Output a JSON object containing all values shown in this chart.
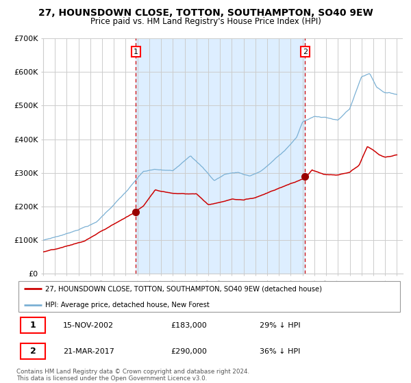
{
  "title": "27, HOUNSDOWN CLOSE, TOTTON, SOUTHAMPTON, SO40 9EW",
  "subtitle": "Price paid vs. HM Land Registry's House Price Index (HPI)",
  "legend_property": "27, HOUNSDOWN CLOSE, TOTTON, SOUTHAMPTON, SO40 9EW (detached house)",
  "legend_hpi": "HPI: Average price, detached house, New Forest",
  "sale1_date": "15-NOV-2002",
  "sale1_price": "£183,000",
  "sale1_hpi": "29% ↓ HPI",
  "sale2_date": "21-MAR-2017",
  "sale2_price": "£290,000",
  "sale2_hpi": "36% ↓ HPI",
  "footnote": "Contains HM Land Registry data © Crown copyright and database right 2024.\nThis data is licensed under the Open Government Licence v3.0.",
  "sale1_year": 2002.87,
  "sale2_year": 2017.22,
  "property_color": "#cc0000",
  "hpi_color": "#7ab0d4",
  "bg_fill_color": "#ddeeff",
  "vline_color": "#cc0000",
  "marker_color": "#990000",
  "grid_color": "#cccccc",
  "ylim": [
    0,
    700000
  ],
  "yticks": [
    0,
    100000,
    200000,
    300000,
    400000,
    500000,
    600000,
    700000
  ],
  "ytick_labels": [
    "£0",
    "£100K",
    "£200K",
    "£300K",
    "£400K",
    "£500K",
    "£600K",
    "£700K"
  ]
}
